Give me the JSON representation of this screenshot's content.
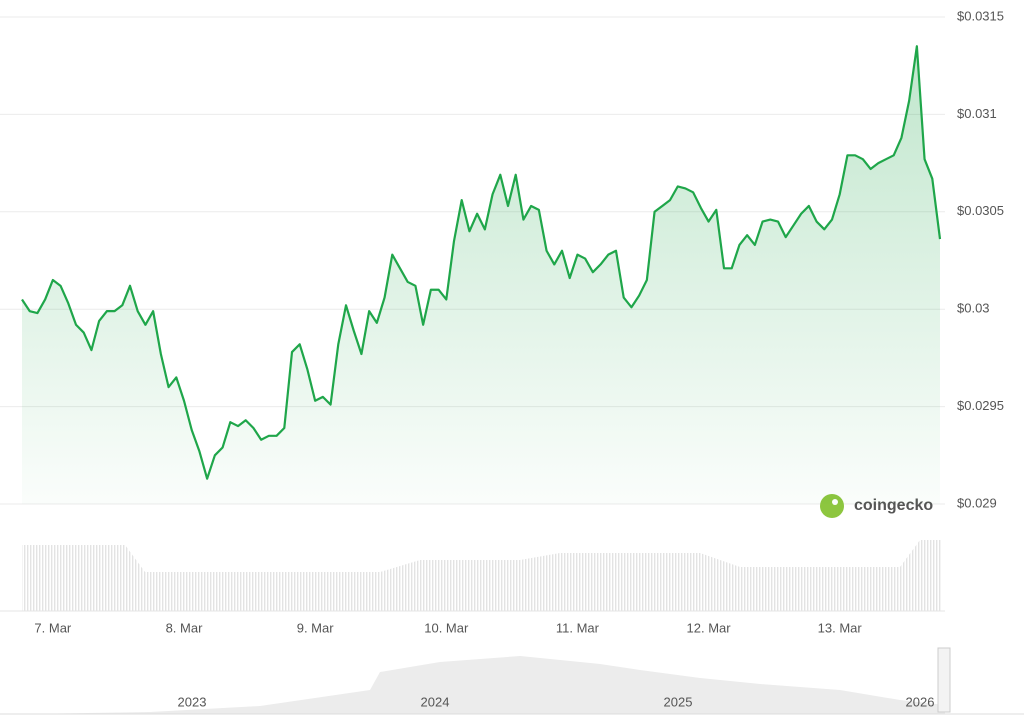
{
  "chart_data": {
    "type": "line",
    "categories": [
      null,
      null,
      null,
      null,
      "7. Mar",
      null,
      null,
      null,
      null,
      null,
      null,
      null,
      null,
      null,
      null,
      null,
      null,
      null,
      null,
      null,
      null,
      "8. Mar",
      null,
      null,
      null,
      null,
      null,
      null,
      null,
      null,
      null,
      null,
      null,
      null,
      null,
      null,
      null,
      null,
      "9. Mar",
      null,
      null,
      null,
      null,
      null,
      null,
      null,
      null,
      null,
      null,
      null,
      null,
      null,
      null,
      null,
      null,
      "10. Mar",
      null,
      null,
      null,
      null,
      null,
      null,
      null,
      null,
      null,
      null,
      null,
      null,
      null,
      null,
      null,
      null,
      "11. Mar",
      null,
      null,
      null,
      null,
      null,
      null,
      null,
      null,
      null,
      null,
      null,
      null,
      null,
      null,
      null,
      null,
      "12. Mar",
      null,
      null,
      null,
      null,
      null,
      null,
      null,
      null,
      null,
      null,
      null,
      null,
      null,
      null,
      null,
      null,
      "13. Mar",
      null,
      null,
      null,
      null,
      null,
      null,
      null,
      null,
      null,
      null,
      null,
      null,
      null
    ],
    "values": [
      0.03005,
      0.02999,
      0.02998,
      0.03005,
      0.03015,
      0.03012,
      0.03003,
      0.02992,
      0.02988,
      0.02979,
      0.02994,
      0.02999,
      0.02999,
      0.03002,
      0.03012,
      0.02999,
      0.02992,
      0.02999,
      0.02977,
      0.0296,
      0.02965,
      0.02953,
      0.02938,
      0.02927,
      0.02913,
      0.02925,
      0.02929,
      0.02942,
      0.0294,
      0.02943,
      0.02939,
      0.02933,
      0.02935,
      0.02935,
      0.02939,
      0.02978,
      0.02982,
      0.02969,
      0.02953,
      0.02955,
      0.02951,
      0.02982,
      0.03002,
      0.02989,
      0.02977,
      0.02999,
      0.02993,
      0.03006,
      0.03028,
      0.03021,
      0.03014,
      0.03012,
      0.02992,
      0.0301,
      0.0301,
      0.03005,
      0.03035,
      0.03056,
      0.0304,
      0.03049,
      0.03041,
      0.03059,
      0.03069,
      0.03053,
      0.03069,
      0.03046,
      0.03053,
      0.03051,
      0.0303,
      0.03023,
      0.0303,
      0.03016,
      0.03028,
      0.03026,
      0.03019,
      0.03023,
      0.03028,
      0.0303,
      0.03006,
      0.03001,
      0.03007,
      0.03015,
      0.0305,
      0.03053,
      0.03056,
      0.03063,
      0.03062,
      0.0306,
      0.03052,
      0.03045,
      0.03051,
      0.03021,
      0.03021,
      0.03033,
      0.03038,
      0.03033,
      0.03045,
      0.03046,
      0.03045,
      0.03037,
      0.03043,
      0.03049,
      0.03053,
      0.03045,
      0.03041,
      0.03046,
      0.03059,
      0.03079,
      0.03079,
      0.03077,
      0.03072,
      0.03075,
      0.03077,
      0.03079,
      0.03088,
      0.03107,
      0.03135,
      0.03077,
      0.03067,
      0.03036
    ],
    "color": "#1fa64a",
    "ylim": [
      0.029,
      0.0315
    ],
    "yticks": [
      {
        "value": 0.029,
        "label": "$0.029"
      },
      {
        "value": 0.0295,
        "label": "$0.0295"
      },
      {
        "value": 0.03,
        "label": "$0.03"
      },
      {
        "value": 0.0305,
        "label": "$0.0305"
      },
      {
        "value": 0.031,
        "label": "$0.031"
      },
      {
        "value": 0.0315,
        "label": "$0.0315"
      }
    ],
    "grid": true,
    "brand": "coingecko",
    "navigator_labels": [
      "2023",
      "2024",
      "2025",
      "2026"
    ]
  }
}
